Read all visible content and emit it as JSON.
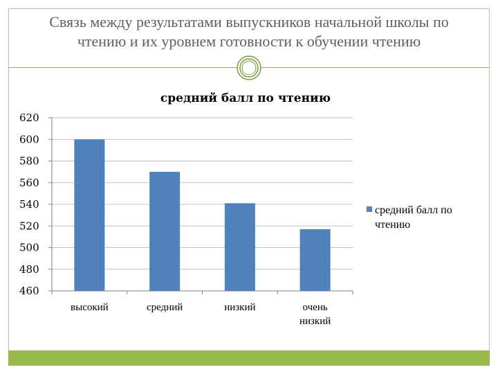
{
  "slide": {
    "title_line1": "Связь между результатами выпускников начальной школы по",
    "title_line2": "чтению и их уровнем готовности к обучении чтению"
  },
  "colors": {
    "bar": "#4f81bd",
    "accent": "#98ba4c",
    "ornament": "#7a9e3b"
  },
  "chart_data": {
    "type": "bar",
    "title": "средний балл по чтению",
    "categories": [
      [
        "высокий"
      ],
      [
        "средний"
      ],
      [
        "низкий"
      ],
      [
        "очень",
        "низкий"
      ]
    ],
    "series": [
      {
        "name": "средний балл по чтению",
        "values": [
          600,
          570,
          541,
          517
        ]
      }
    ],
    "ylim": [
      460,
      620
    ],
    "yticks": [
      460,
      480,
      500,
      520,
      540,
      560,
      580,
      600,
      620
    ],
    "legend_position": "right",
    "legend_lines": [
      "средний балл по",
      "чтению"
    ]
  }
}
